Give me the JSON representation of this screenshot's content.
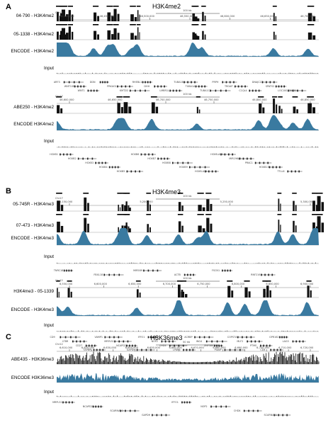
{
  "colors": {
    "peak": "#111111",
    "encode": "#3a7aa0",
    "gene": "#222222"
  },
  "panels": [
    {
      "letter": "A",
      "title": "H3K4me2",
      "blocks": [
        {
          "chrom": "Chr12",
          "scale": "100 kb",
          "coords": [
            "46,400,000",
            "46,450,000",
            "46,500,000",
            "46,550,000",
            "46,600,000",
            "46,650,000",
            "46,700,000"
          ],
          "tracks": [
            {
              "label": "04-790 - H3K4me2",
              "kind": "peak"
            },
            {
              "label": "05-1338 - H3K4me2",
              "kind": "peak"
            },
            {
              "label": "ENCODE - H3K4me2",
              "kind": "encode"
            },
            {
              "label": "Input",
              "kind": "input"
            }
          ],
          "genes": [
            "ARF3",
            "WNT10B",
            "WNT1",
            "DDN",
            "PRKAG1",
            "KMT2D",
            "RHEBL1",
            "DHH",
            "LMBR1L",
            "TUBA1B",
            "TUBA1A",
            "TUBA1C",
            "PRPH",
            "TROAP",
            "C1QL4",
            "DNAJC22",
            "SPATS2",
            "LOC100335030"
          ]
        },
        {
          "chrom": "Chr17",
          "scale": "100 kb",
          "coords": [
            "46,600,000",
            "46,650,000",
            "46,700,000",
            "46,750,000",
            "46,800,000",
            "46,850,000"
          ],
          "tracks": [
            {
              "label": "ABE250 - H3K4me2",
              "kind": "peak"
            },
            {
              "label": "ENCODE H3K4me2",
              "kind": "encode"
            },
            {
              "label": "Input",
              "kind": "input"
            }
          ],
          "genes": [
            "HOXB1",
            "HOXB2",
            "HOXB3",
            "HOXB4",
            "HOXB5",
            "HOXB6",
            "HOXB7",
            "HOXB8",
            "HOXB9",
            "HOXB-AS1",
            "HOXB-AS3",
            "MIR196A1",
            "PRAC1",
            "HOXB13",
            "TTLL6"
          ]
        }
      ]
    },
    {
      "letter": "B",
      "title": "H3K4me3",
      "blocks": [
        {
          "chrom": "Chr17",
          "scale": "100 kb",
          "coords": [
            "5,150,000",
            "5,200,000",
            "5,250,000",
            "5,300,000"
          ],
          "tracks": [
            {
              "label": "05-745R - H3K4me3",
              "kind": "peak"
            },
            {
              "label": "07-473 - H3K4me3",
              "kind": "peak"
            },
            {
              "label": "ENCODE - H3K4me3",
              "kind": "encode"
            },
            {
              "label": "Input",
              "kind": "input"
            }
          ],
          "genes": [
            "TNRC18",
            "FBXL18",
            "MIR589",
            "ACTB",
            "FSCN1",
            "RNF216"
          ]
        },
        {
          "chrom": "Chr12",
          "scale": "100 kb",
          "coords": [
            "6,550,000",
            "6,600,000",
            "6,650,000",
            "6,700,000",
            "6,750,000",
            "6,800,000",
            "6,850,000",
            "6,900,000"
          ],
          "tracks": [
            {
              "label": "H3K4me3 - 05-1339",
              "kind": "peak"
            },
            {
              "label": "ENCODE - H3K4me3",
              "kind": "encode"
            },
            {
              "label": "Input",
              "kind": "input"
            }
          ],
          "genes": [
            "CD9",
            "LTBR",
            "CD27",
            "TAPBPL",
            "VAMP1",
            "MRPL51",
            "NCAPD2",
            "GAPDH",
            "IFFO1",
            "NOP2",
            "CHD4",
            "LPAR5",
            "ACRBP",
            "ING4",
            "ZNF384",
            "PIANP",
            "COPS7A",
            "MLF2",
            "PTMS",
            "CD4",
            "GPR162",
            "LAG3"
          ]
        }
      ]
    },
    {
      "letter": "C",
      "title": "H3K36me3",
      "blocks": [
        {
          "chrom": "Chr12",
          "scale": "50 kb",
          "coords": [
            "6,610,000",
            "6,620,000",
            "6,630,000",
            "6,640,000",
            "6,650,000",
            "6,660,000",
            "6,670,000",
            "6,680,000",
            "6,690,000",
            "6,700,000",
            "6,710,000",
            "6,720,000"
          ],
          "tracks": [
            {
              "label": "ABE435 - H3K36me3",
              "kind": "dense"
            },
            {
              "label": "ENCODE H3K36me3",
              "kind": "encodeDense"
            },
            {
              "label": "Input",
              "kind": "input"
            }
          ],
          "genes": [
            "MRPL51",
            "NCAPD2",
            "SCARNA10",
            "GAPDH",
            "IFFO1",
            "NOP2",
            "CHD4",
            "SCARNA11"
          ]
        }
      ]
    }
  ]
}
